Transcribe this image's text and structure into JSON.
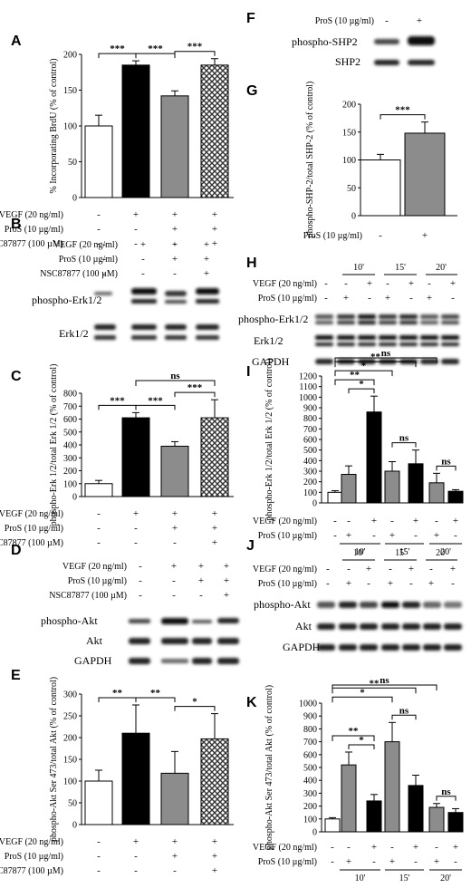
{
  "panels": {
    "A": "A",
    "B": "B",
    "C": "C",
    "D": "D",
    "E": "E",
    "F": "F",
    "G": "G",
    "H": "H",
    "I": "I",
    "J": "J",
    "K": "K"
  },
  "treat_labels": {
    "vegf": "VEGF (20 ng/ml)",
    "pros": "ProS (10 µg/ml)",
    "nsc": "NSC87877 (100 µM)"
  },
  "signs4": {
    "vegf": [
      "-",
      "+",
      "+",
      "+"
    ],
    "pros": [
      "-",
      "-",
      "+",
      "+"
    ],
    "nsc": [
      "-",
      "-",
      "-",
      "+"
    ]
  },
  "blot_labels": {
    "perk": "phospho-Erk1/2",
    "erk": "Erk1/2",
    "pakt": "phospho-Akt",
    "akt": "Akt",
    "gapdh": "GAPDH",
    "pshp2": "phospho-SHP2",
    "shp2": "SHP2"
  },
  "F_G": {
    "pros_label": "ProS (10 µg/ml)",
    "signs": [
      "-",
      "+"
    ]
  },
  "time_labels": [
    "10'",
    "15'",
    "20'"
  ],
  "signs6": {
    "vegf": [
      "-",
      "+",
      "-",
      "+",
      "-",
      "+"
    ],
    "pros": [
      "+",
      "-",
      "+",
      "-",
      "+",
      "-"
    ]
  },
  "colors": {
    "white": "#ffffff",
    "black": "#000000",
    "gray": "#8c8c8c",
    "hatch": "#555555"
  },
  "chart_data": [
    {
      "id": "A",
      "type": "bar",
      "ylabel": "% Incorporating BrdU (% of control)",
      "yticks": [
        0,
        50,
        100,
        150,
        200
      ],
      "ylim": [
        0,
        200
      ],
      "values": [
        100,
        185,
        142,
        185
      ],
      "errors": [
        15,
        6,
        7,
        9
      ],
      "fills": [
        "white",
        "black",
        "gray",
        "hatch"
      ],
      "sig": [
        [
          "***",
          0,
          1,
          1
        ],
        [
          "***",
          1,
          2,
          1
        ],
        [
          "***",
          2,
          3,
          1
        ]
      ],
      "ns_or_bracket": []
    },
    {
      "id": "C",
      "type": "bar",
      "ylabel": "phospho-Erk 1/2/total Erk 1/2 (% of control)",
      "yticks": [
        0,
        100,
        200,
        300,
        400,
        500,
        600,
        700,
        800
      ],
      "ylim": [
        0,
        800
      ],
      "values": [
        100,
        610,
        390,
        610
      ],
      "errors": [
        25,
        40,
        35,
        140
      ],
      "fills": [
        "white",
        "black",
        "gray",
        "hatch"
      ],
      "sig": [
        [
          "***",
          0,
          1,
          1
        ],
        [
          "***",
          1,
          2,
          1
        ],
        [
          "***",
          2,
          3,
          1
        ],
        [
          "ns",
          1,
          3,
          2
        ]
      ]
    },
    {
      "id": "E",
      "type": "bar",
      "ylabel": "phospho-Akt Ser 473/total Akt (% of control)",
      "yticks": [
        0,
        50,
        100,
        150,
        200,
        250,
        300
      ],
      "ylim": [
        0,
        300
      ],
      "values": [
        100,
        210,
        118,
        197
      ],
      "errors": [
        25,
        65,
        50,
        58
      ],
      "fills": [
        "white",
        "black",
        "gray",
        "hatch"
      ],
      "sig": [
        [
          "**",
          0,
          1,
          1
        ],
        [
          "**",
          1,
          2,
          1
        ],
        [
          "*",
          2,
          3,
          1
        ]
      ]
    },
    {
      "id": "G",
      "type": "bar",
      "ylabel": "phospho-SHP-2/total SHP-2 (% of control)",
      "yticks": [
        0,
        50,
        100,
        150,
        200
      ],
      "ylim": [
        0,
        200
      ],
      "values": [
        100,
        148
      ],
      "errors": [
        10,
        20
      ],
      "fills": [
        "white",
        "gray"
      ],
      "sig": [
        [
          "***",
          0,
          1,
          1
        ]
      ]
    },
    {
      "id": "I",
      "type": "bar",
      "ylabel": "phospho-Erk 1/2/total Erk 1/2 (% of control)",
      "yticks": [
        0,
        100,
        200,
        300,
        400,
        500,
        600,
        700,
        800,
        900,
        1000,
        1100,
        1200
      ],
      "ylim": [
        0,
        1200
      ],
      "values": [
        100,
        270,
        860,
        300,
        370,
        190,
        110
      ],
      "errors": [
        15,
        80,
        150,
        90,
        130,
        90,
        15
      ],
      "fills": [
        "white",
        "gray",
        "black",
        "gray",
        "black",
        "gray",
        "black"
      ],
      "sig": [
        [
          "*",
          1,
          2,
          1
        ],
        [
          "ns",
          3,
          4,
          1
        ],
        [
          "ns",
          5,
          6,
          1
        ],
        [
          "**",
          0,
          2,
          2
        ],
        [
          "*",
          0,
          3,
          3
        ],
        [
          "**",
          0,
          4,
          4
        ],
        [
          "ns",
          0,
          5,
          5
        ]
      ]
    },
    {
      "id": "K",
      "type": "bar",
      "ylabel": "phospho-Akt Ser 473/total Akt (% of control)",
      "yticks": [
        0,
        100,
        200,
        300,
        400,
        500,
        600,
        700,
        800,
        900,
        1000
      ],
      "ylim": [
        0,
        1000
      ],
      "values": [
        100,
        520,
        240,
        700,
        360,
        190,
        150
      ],
      "errors": [
        10,
        100,
        50,
        150,
        80,
        30,
        30
      ],
      "fills": [
        "white",
        "gray",
        "black",
        "gray",
        "black",
        "gray",
        "black"
      ],
      "sig": [
        [
          "*",
          1,
          2,
          1
        ],
        [
          "ns",
          3,
          4,
          1
        ],
        [
          "ns",
          5,
          6,
          1
        ],
        [
          "**",
          0,
          2,
          2
        ],
        [
          "*",
          0,
          3,
          3
        ],
        [
          "**",
          0,
          4,
          4
        ],
        [
          "ns",
          0,
          5,
          5
        ]
      ]
    }
  ]
}
